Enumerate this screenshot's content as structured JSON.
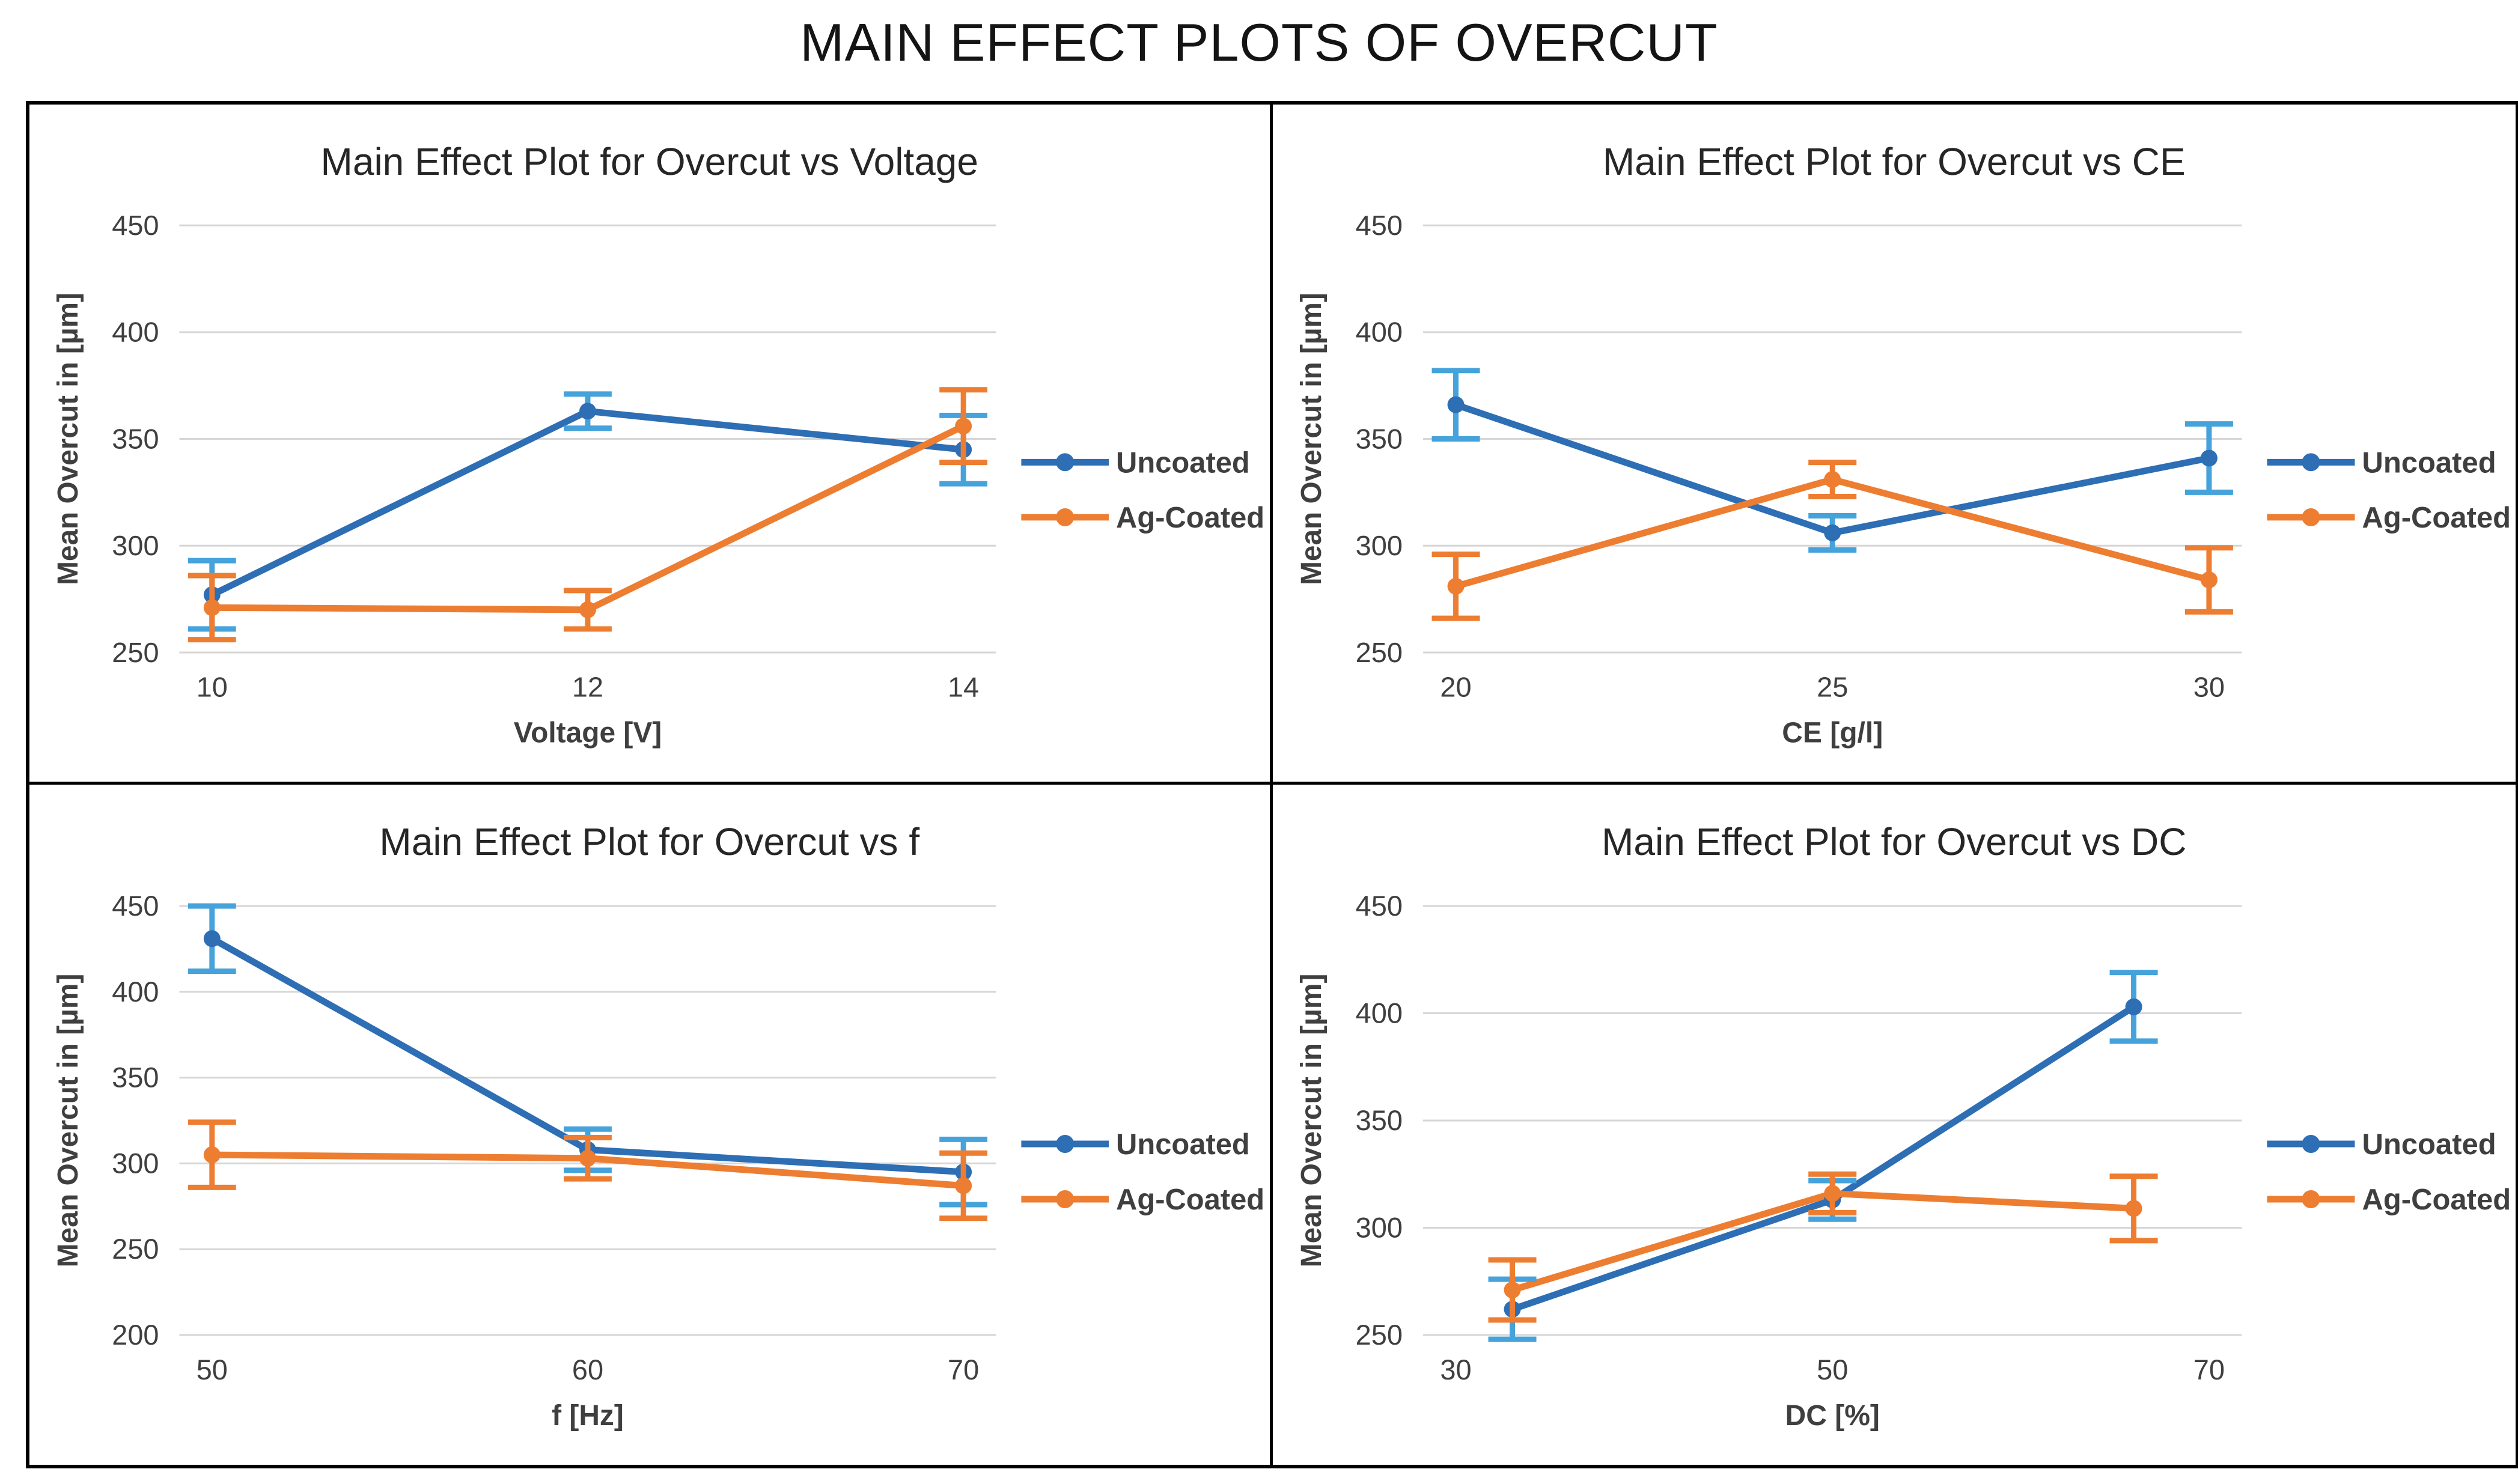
{
  "main_title": "MAIN EFFECT PLOTS OF OVERCUT",
  "legend_labels": [
    "Uncoated",
    "Ag-Coated"
  ],
  "colors": {
    "uncoated_line": "#2D6EB4",
    "uncoated_error": "#45A2DB",
    "ag_coated_line": "#ED7D31",
    "ag_coated_error": "#ED7D31",
    "gridline": "#D6D6D6",
    "axis_text": "#3F3F3F",
    "chart_title_text": "#262626",
    "main_title_text": "#141414",
    "border": "#000000"
  },
  "chart_data": [
    {
      "type": "line",
      "title": "Main Effect Plot for Overcut vs Voltage",
      "xlabel": "Voltage [V]",
      "ylabel": "Mean Overcut in [µm]",
      "ylim": [
        250,
        450
      ],
      "ytick_step": 50,
      "yticks": [
        250,
        300,
        350,
        400,
        450
      ],
      "x_ticks": [
        10,
        12,
        14
      ],
      "grid": true,
      "legend_position": "right",
      "series": [
        {
          "name": "Uncoated",
          "color": "#2D6EB4",
          "err_color": "#45A2DB",
          "x": [
            10,
            12,
            14
          ],
          "y": [
            277,
            363,
            345
          ],
          "yerr": [
            16,
            8,
            16
          ]
        },
        {
          "name": "Ag-Coated",
          "color": "#ED7D31",
          "err_color": "#ED7D31",
          "x": [
            10,
            12,
            14
          ],
          "y": [
            271,
            270,
            356
          ],
          "yerr": [
            15,
            9,
            17
          ]
        }
      ]
    },
    {
      "type": "line",
      "title": "Main Effect Plot for Overcut vs CE",
      "xlabel": "CE [g/l]",
      "ylabel": "Mean Overcut in [µm]",
      "ylim": [
        250,
        450
      ],
      "ytick_step": 50,
      "yticks": [
        250,
        300,
        350,
        400,
        450
      ],
      "x_ticks": [
        20,
        25,
        30
      ],
      "grid": true,
      "legend_position": "right",
      "series": [
        {
          "name": "Uncoated",
          "color": "#2D6EB4",
          "err_color": "#45A2DB",
          "x": [
            20,
            25,
            30
          ],
          "y": [
            366,
            306,
            341
          ],
          "yerr": [
            16,
            8,
            16
          ]
        },
        {
          "name": "Ag-Coated",
          "color": "#ED7D31",
          "err_color": "#ED7D31",
          "x": [
            20,
            25,
            30
          ],
          "y": [
            281,
            331,
            284
          ],
          "yerr": [
            15,
            8,
            15
          ]
        }
      ]
    },
    {
      "type": "line",
      "title": "Main Effect Plot for Overcut vs f",
      "xlabel": "f [Hz]",
      "ylabel": "Mean Overcut in [µm]",
      "ylim": [
        200,
        450
      ],
      "ytick_step": 50,
      "yticks": [
        200,
        250,
        300,
        350,
        400,
        450
      ],
      "x_ticks": [
        50,
        60,
        70
      ],
      "grid": true,
      "legend_position": "right",
      "series": [
        {
          "name": "Uncoated",
          "color": "#2D6EB4",
          "err_color": "#45A2DB",
          "x": [
            50,
            60,
            70
          ],
          "y": [
            431,
            308,
            295
          ],
          "yerr": [
            19,
            12,
            19
          ]
        },
        {
          "name": "Ag-Coated",
          "color": "#ED7D31",
          "err_color": "#ED7D31",
          "x": [
            50,
            60,
            70
          ],
          "y": [
            305,
            303,
            287
          ],
          "yerr": [
            19,
            12,
            19
          ]
        }
      ]
    },
    {
      "type": "line",
      "title": "Main Effect Plot for Overcut vs DC",
      "xlabel": "DC [%]",
      "ylabel": "Mean Overcut in [µm]",
      "ylim": [
        250,
        450
      ],
      "ytick_step": 50,
      "yticks": [
        250,
        300,
        350,
        400,
        450
      ],
      "x_ticks": [
        30,
        50,
        70
      ],
      "grid": true,
      "legend_position": "right",
      "series": [
        {
          "name": "Uncoated",
          "color": "#2D6EB4",
          "err_color": "#45A2DB",
          "x": [
            33,
            50,
            66
          ],
          "y": [
            262,
            313,
            403
          ],
          "yerr": [
            14,
            9,
            16
          ]
        },
        {
          "name": "Ag-Coated",
          "color": "#ED7D31",
          "err_color": "#ED7D31",
          "x": [
            33,
            50,
            66
          ],
          "y": [
            271,
            316,
            309
          ],
          "yerr": [
            14,
            9,
            15
          ]
        }
      ]
    }
  ]
}
